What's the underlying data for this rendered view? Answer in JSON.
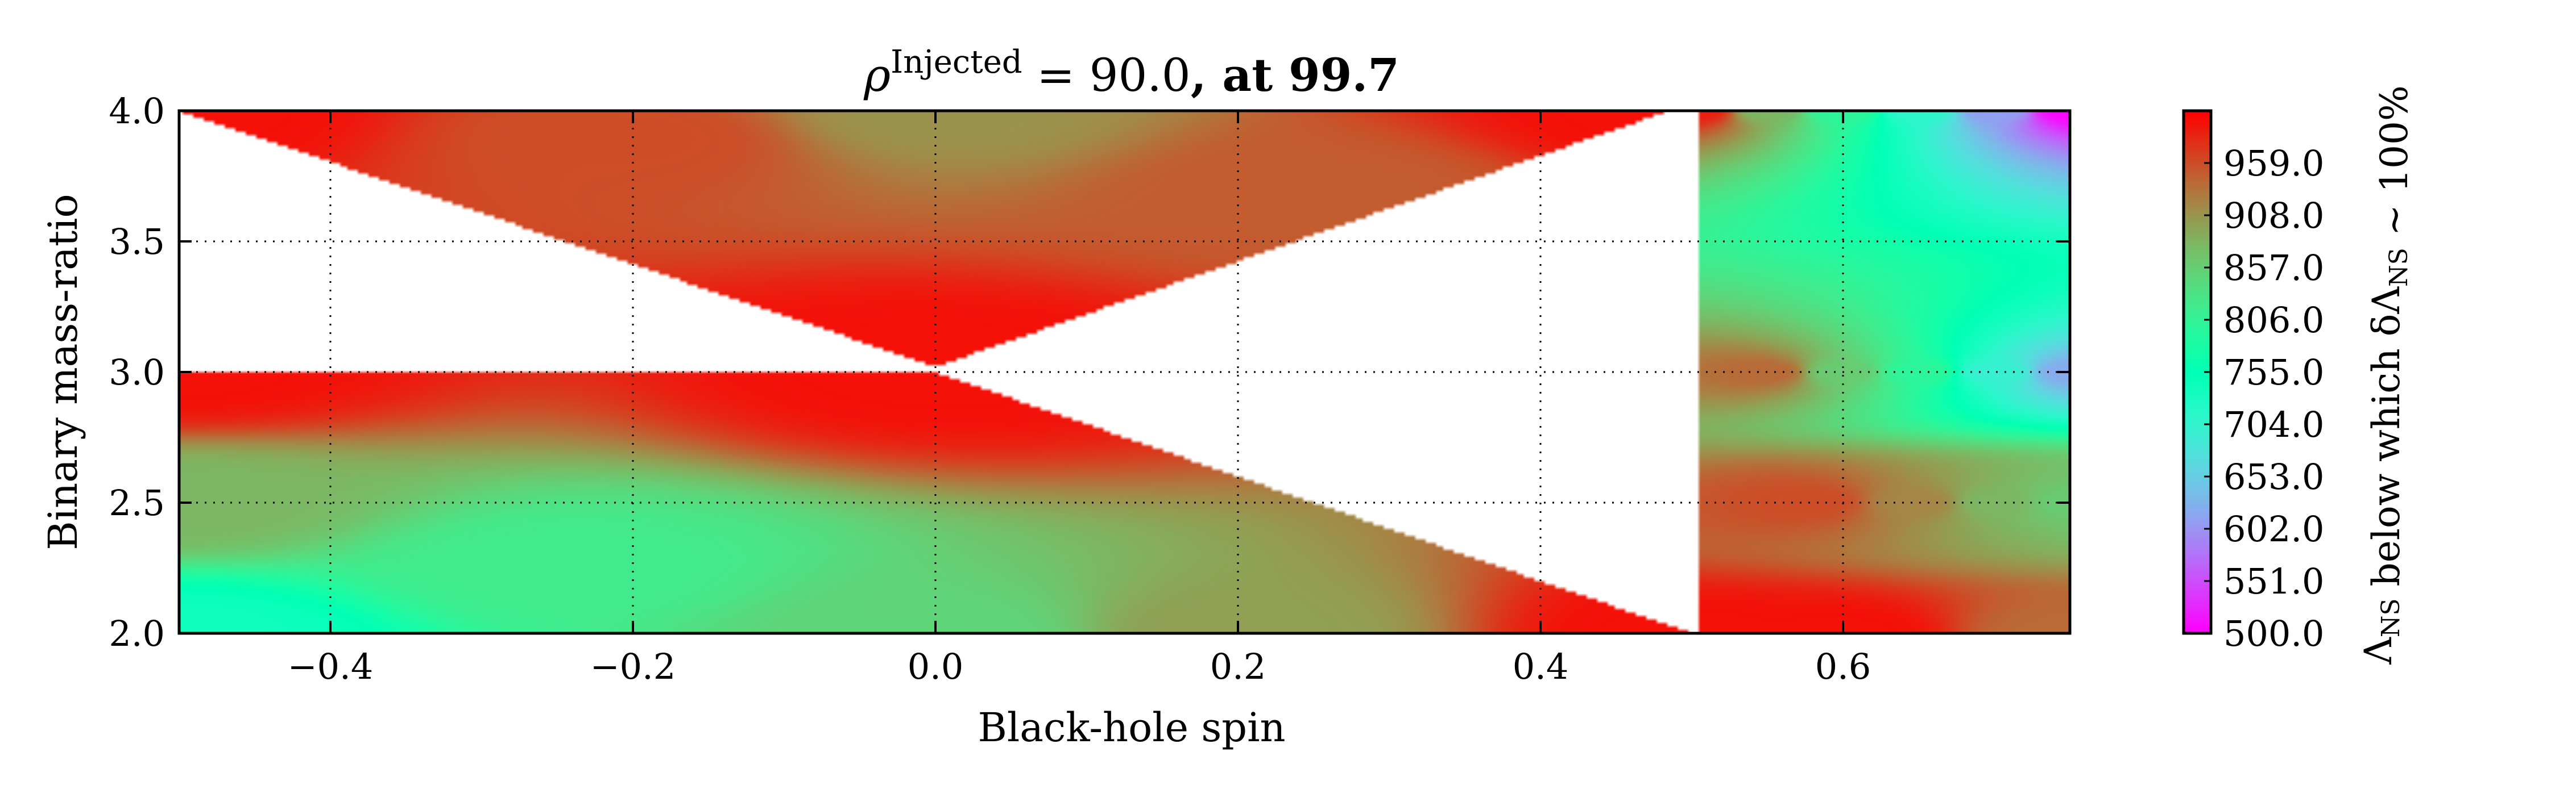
{
  "chart_data": {
    "type": "heatmap",
    "title": {
      "symbol": "ρ",
      "superscript": "Injected",
      "equals": " = 90.0",
      "suffix": ", at 99.7"
    },
    "xlabel": "Black-hole spin",
    "ylabel": "Binary mass-ratio",
    "xlim": [
      -0.5,
      0.75
    ],
    "ylim": [
      2.0,
      4.0
    ],
    "x_ticks": [
      -0.4,
      -0.2,
      0.0,
      0.2,
      0.4,
      0.6
    ],
    "x_tick_labels": [
      "−0.4",
      "−0.2",
      "0.0",
      "0.2",
      "0.4",
      "0.6"
    ],
    "y_ticks": [
      2.0,
      2.5,
      3.0,
      3.5,
      4.0
    ],
    "y_tick_labels": [
      "2.0",
      "2.5",
      "3.0",
      "3.5",
      "4.0"
    ],
    "grid": true,
    "colormap": "rainbow",
    "colorbar": {
      "range": [
        500.0,
        1010.0
      ],
      "ticks": [
        500.0,
        551.0,
        602.0,
        653.0,
        704.0,
        755.0,
        806.0,
        857.0,
        908.0,
        959.0
      ],
      "tick_labels": [
        "500.0",
        "551.0",
        "602.0",
        "653.0",
        "704.0",
        "755.0",
        "806.0",
        "857.0",
        "908.0",
        "959.0"
      ],
      "label": "Λ_NS below which δΛ_NS ~ 100%"
    },
    "regions": [
      {
        "polygon": [
          [
            -0.5,
            4.0
          ],
          [
            0.485,
            4.0
          ],
          [
            0.0,
            3.02
          ]
        ],
        "values": [
          [
            -0.5,
            4.0,
            1000
          ],
          [
            0.485,
            4.0,
            1000
          ],
          [
            0.0,
            3.02,
            1000
          ],
          [
            0.0,
            4.0,
            910
          ],
          [
            -0.2,
            3.9,
            960
          ],
          [
            0.25,
            3.7,
            950
          ]
        ]
      },
      {
        "polygon": [
          [
            -0.5,
            3.0
          ],
          [
            0.0,
            3.0
          ],
          [
            0.5,
            2.0
          ],
          [
            -0.5,
            2.0
          ]
        ],
        "values": [
          [
            -0.5,
            3.0,
            1000
          ],
          [
            0.0,
            3.0,
            1000
          ],
          [
            0.5,
            2.0,
            1000
          ],
          [
            -0.5,
            2.0,
            740
          ],
          [
            -0.5,
            2.5,
            880
          ],
          [
            0.0,
            2.0,
            850
          ],
          [
            0.2,
            2.0,
            900
          ],
          [
            -0.25,
            2.25,
            820
          ]
        ]
      },
      {
        "polygon": [
          [
            0.505,
            4.0
          ],
          [
            0.75,
            4.0
          ],
          [
            0.75,
            2.0
          ],
          [
            0.505,
            2.0
          ]
        ],
        "values": [
          [
            0.505,
            4.0,
            990
          ],
          [
            0.55,
            4.0,
            880
          ],
          [
            0.6,
            4.0,
            800
          ],
          [
            0.65,
            4.0,
            710
          ],
          [
            0.7,
            4.0,
            610
          ],
          [
            0.75,
            4.0,
            505
          ],
          [
            0.75,
            3.0,
            620
          ],
          [
            0.75,
            2.5,
            860
          ],
          [
            0.75,
            2.0,
            940
          ],
          [
            0.6,
            3.0,
            860
          ],
          [
            0.65,
            3.0,
            800
          ],
          [
            0.7,
            3.0,
            700
          ],
          [
            0.65,
            2.5,
            920
          ],
          [
            0.58,
            2.5,
            960
          ],
          [
            0.505,
            2.0,
            1000
          ],
          [
            0.6,
            2.0,
            1000
          ],
          [
            0.55,
            3.0,
            940
          ],
          [
            0.7,
            2.5,
            880
          ]
        ]
      }
    ]
  }
}
